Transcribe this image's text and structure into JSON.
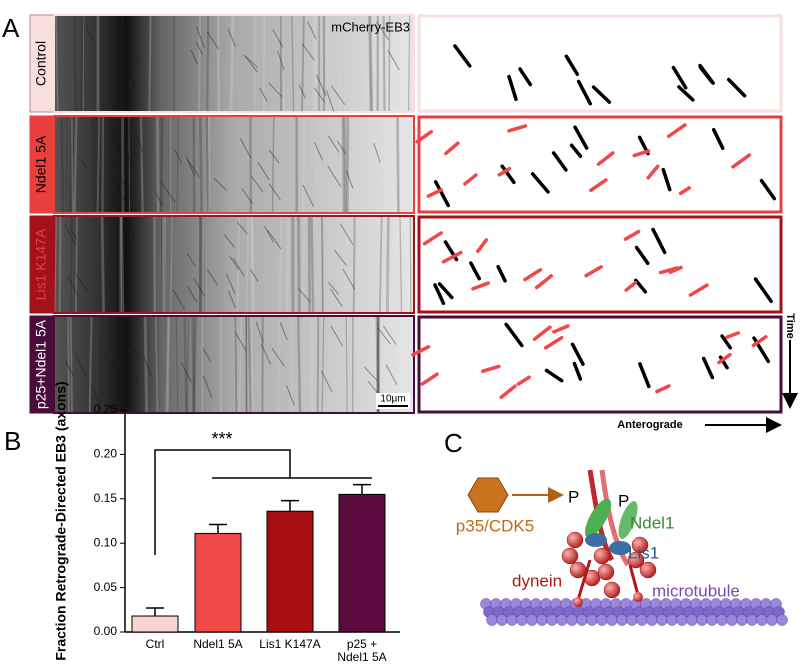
{
  "panel_a": {
    "label": "A",
    "stain_label": "mCherry-EB3",
    "rows": [
      {
        "name": "Control",
        "color": "#f9dede",
        "text_color": "#000000"
      },
      {
        "name": "Ndel1 5A",
        "color": "#e8403f",
        "text_color": "#000000"
      },
      {
        "name": "Lis1 K147A",
        "color": "#a3111a",
        "text_color": "#e84040"
      },
      {
        "name": "p25+Ndel1 5A",
        "color": "#4a0c3a",
        "text_color": "#ffffff"
      }
    ],
    "scale_bar": "10μm",
    "time_label": "Time",
    "direction_label": "Anterograde"
  },
  "panel_b": {
    "label": "B",
    "annotation": "***",
    "chart_data": {
      "type": "bar",
      "y_label": "Fraction Retrograde-Directed EB3 (axons)",
      "categories": [
        "Ctrl",
        "Ndel1 5A",
        "Lis1 K147A",
        "p25 + Ndel1 5A"
      ],
      "values": [
        0.018,
        0.111,
        0.136,
        0.155
      ],
      "errors": [
        0.009,
        0.01,
        0.012,
        0.011
      ],
      "colors": [
        "#fcd3d3",
        "#f24848",
        "#a80e12",
        "#5a0a3c"
      ],
      "ylim": [
        0,
        0.25
      ],
      "yticks": [
        {
          "value": 0,
          "label": "0.00"
        },
        {
          "value": 0.05,
          "label": "0.05"
        },
        {
          "value": 0.1,
          "label": "0.10"
        },
        {
          "value": 0.15,
          "label": "0.15"
        },
        {
          "value": 0.2,
          "label": "0.20"
        },
        {
          "value": 0.25,
          "label": "0.25"
        }
      ]
    }
  },
  "panel_c": {
    "label": "C",
    "kinase": "p35/CDK5",
    "phospho_1": "P",
    "phospho_2": "P",
    "ndel1": "Ndel1",
    "lis1": "Lis1",
    "dynein": "dynein",
    "microtubule": "microtubule"
  }
}
